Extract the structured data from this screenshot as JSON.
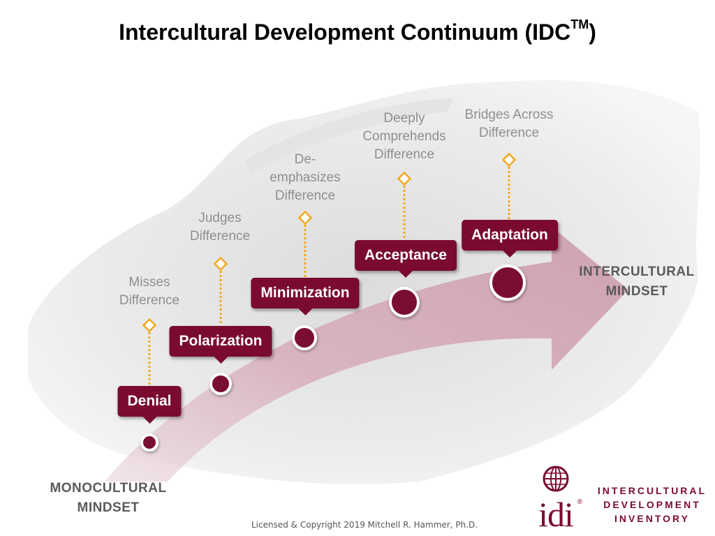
{
  "title": {
    "main": "Intercultural Development Continuum (IDC",
    "tm": "TM",
    "close": ")"
  },
  "mindsets": {
    "left": [
      "MONOCULTURAL",
      "MINDSET"
    ],
    "right": [
      "INTERCULTURAL",
      "MINDSET"
    ]
  },
  "stages": [
    {
      "key": "denial",
      "label": "Denial",
      "description": [
        "Misses",
        "Difference"
      ]
    },
    {
      "key": "polarization",
      "label": "Polarization",
      "description": [
        "Judges",
        "Difference"
      ]
    },
    {
      "key": "minimization",
      "label": "Minimization",
      "description": [
        "De-",
        "emphasizes",
        "Difference"
      ]
    },
    {
      "key": "acceptance",
      "label": "Acceptance",
      "description": [
        "Deeply",
        "Comprehends",
        "Difference"
      ]
    },
    {
      "key": "adaptation",
      "label": "Adaptation",
      "description": [
        "Bridges Across",
        "Difference"
      ]
    }
  ],
  "copyright": "Licensed & Copyright 2019 Mitchell R. Hammer, Ph.D.",
  "logo": {
    "mark": "idi",
    "reg": "®",
    "lines": [
      "INTERCULTURAL",
      "DEVELOPMENT",
      "INVENTORY"
    ]
  },
  "colors": {
    "maroon": "#7a0a30",
    "arrow": "#d9b8c3",
    "connector": "#f2a81d",
    "description_text": "#8f8f8f",
    "mindset_text": "#5a5a5a"
  }
}
